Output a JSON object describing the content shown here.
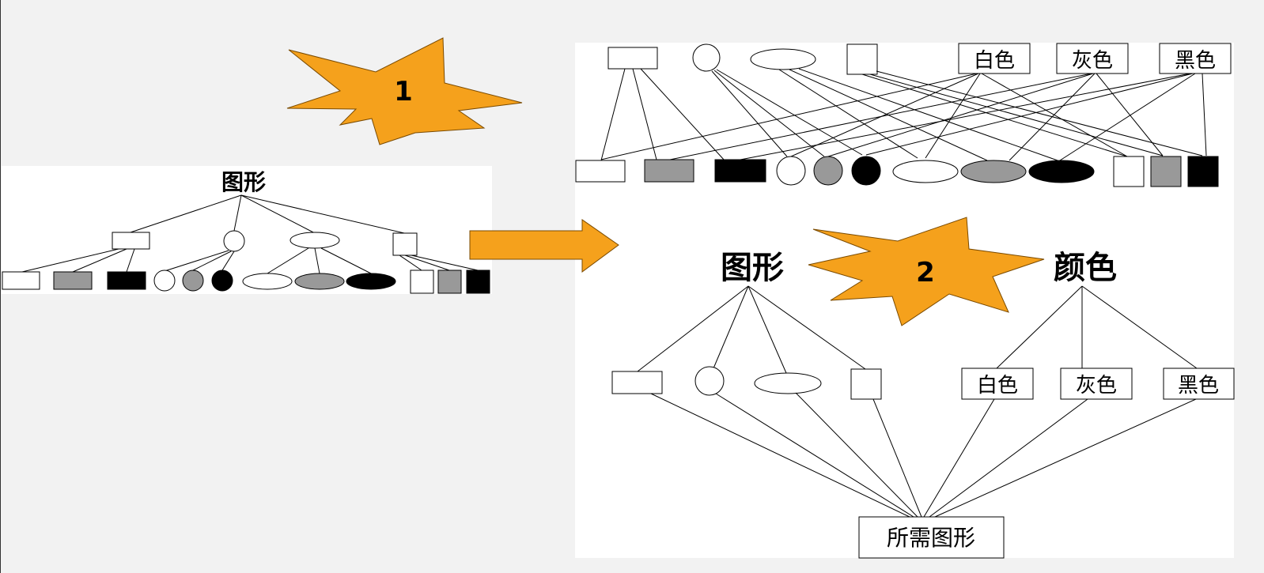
{
  "colors": {
    "background": "#f2f2f2",
    "panel": "#ffffff",
    "accent_orange": "#f5a11c",
    "gray_fill": "#999999",
    "black_fill": "#000000"
  },
  "callouts": {
    "step1": "1",
    "step2": "2"
  },
  "left_tree": {
    "root": "图形",
    "shape_types": [
      "rectangle",
      "circle",
      "ellipse",
      "square"
    ],
    "fills": [
      "white",
      "gray",
      "black"
    ]
  },
  "top_right": {
    "color_nodes": [
      "白色",
      "灰色",
      "黑色"
    ]
  },
  "bottom_right": {
    "shape_root": "图形",
    "color_root": "颜色",
    "color_nodes": [
      "白色",
      "灰色",
      "黑色"
    ],
    "result": "所需图形"
  }
}
